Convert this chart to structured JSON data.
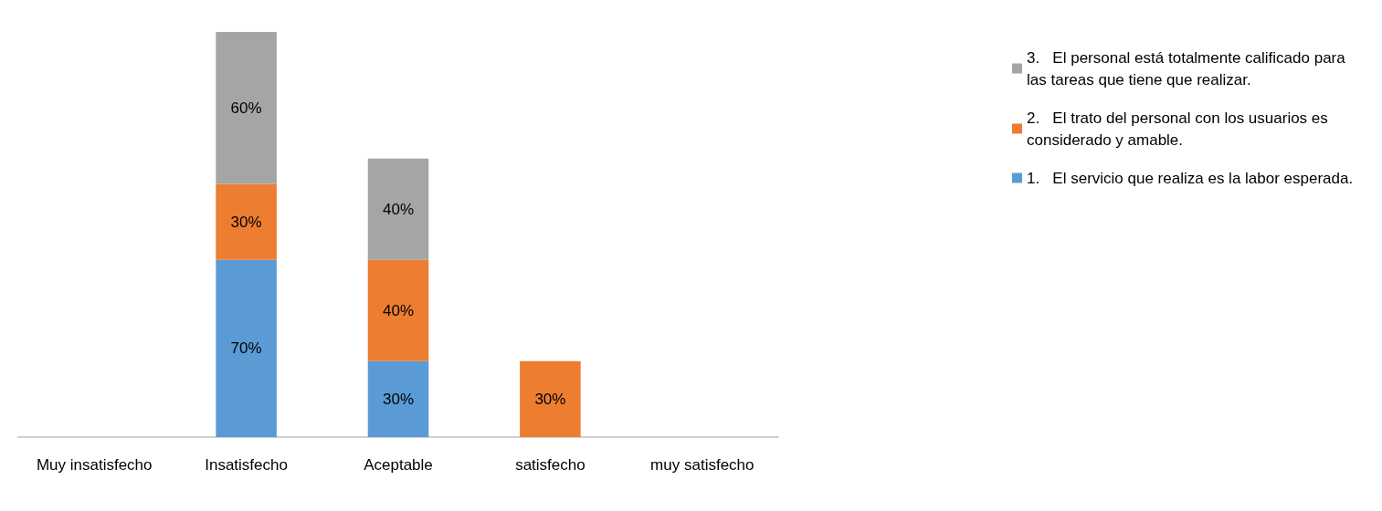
{
  "chart_data": {
    "type": "bar",
    "stacked": true,
    "categories": [
      "Muy insatisfecho",
      "Insatisfecho",
      "Aceptable",
      "satisfecho",
      "muy satisfecho"
    ],
    "series": [
      {
        "name": "1.   El servicio que realiza es la labor esperada.",
        "color": "#5b9bd5",
        "values": [
          null,
          70,
          30,
          null,
          null
        ],
        "value_labels": [
          null,
          "70%",
          "30%",
          null,
          null
        ]
      },
      {
        "name": "2.   El trato del personal con los usuarios es considerado y amable.",
        "color": "#ed7d31",
        "values": [
          null,
          30,
          40,
          30,
          null
        ],
        "value_labels": [
          null,
          "30%",
          "40%",
          "30%",
          null
        ]
      },
      {
        "name": "3.   El personal está totalmente calificado para las tareas que tiene que realizar.",
        "color": "#a5a5a5",
        "values": [
          null,
          60,
          40,
          null,
          null
        ],
        "value_labels": [
          null,
          "60%",
          "40%",
          null,
          null
        ]
      }
    ],
    "legend": "right"
  }
}
